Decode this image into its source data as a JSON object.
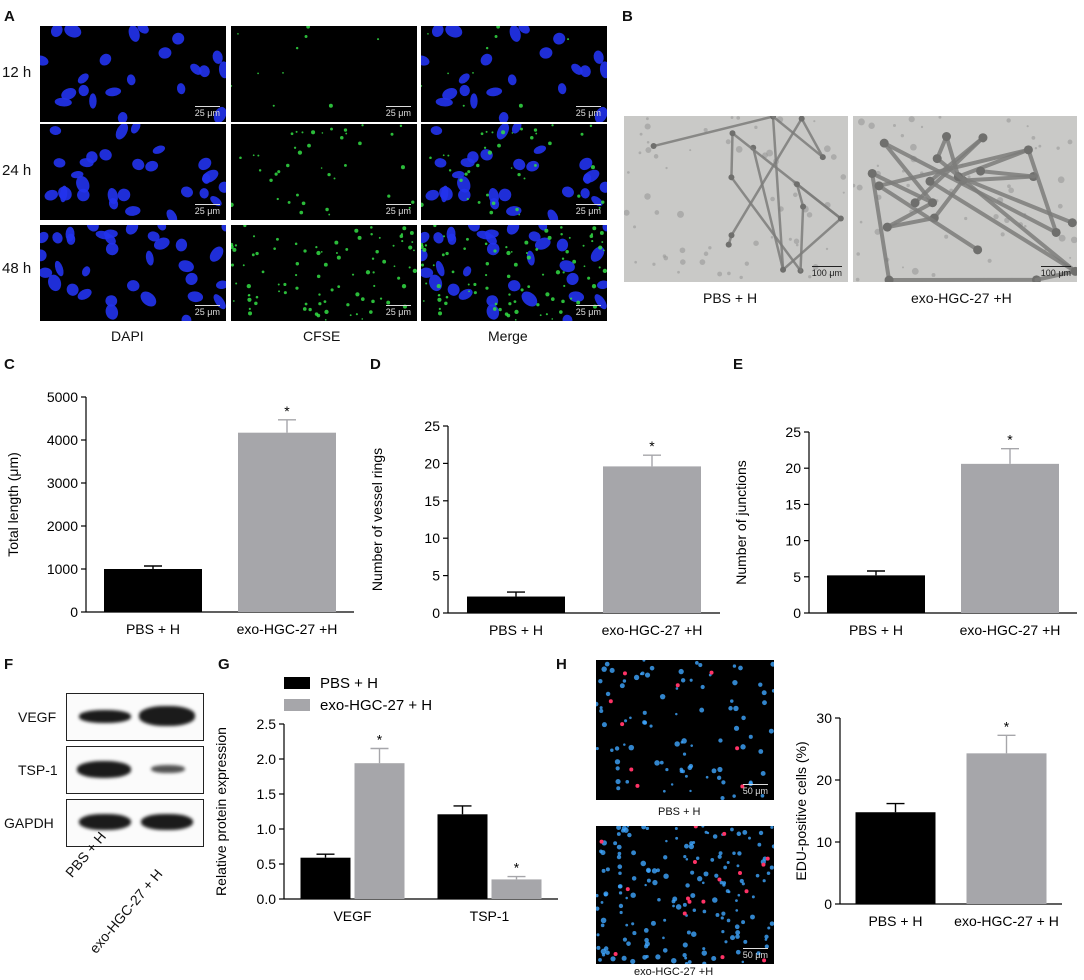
{
  "panels": {
    "A": {
      "letter": "A",
      "rows": [
        "12 h",
        "24 h",
        "48 h"
      ],
      "columns": [
        "DAPI",
        "CFSE",
        "Merge"
      ],
      "scale_bar": "25 μm"
    },
    "B": {
      "letter": "B",
      "captions": [
        "PBS + H",
        "exo-HGC-27 +H"
      ],
      "scale_bar": "100 μm"
    },
    "F": {
      "letter": "F",
      "rows": [
        "VEGF",
        "TSP-1",
        "GAPDH"
      ],
      "lanes": [
        "PBS + H",
        "exo-HGC-27 + H"
      ]
    },
    "H": {
      "letter": "H",
      "captions": [
        "PBS + H",
        "exo-HGC-27 +H"
      ],
      "scale_bar": "50 μm"
    }
  },
  "colors": {
    "black_bar": "#000000",
    "gray_bar": "#a6a6aa",
    "dapi": "#2233ee",
    "cfse": "#33dd44"
  },
  "chart_data": [
    {
      "id": "C",
      "letter": "C",
      "type": "bar",
      "categories": [
        "PBS + H",
        "exo-HGC-27 +H"
      ],
      "values": [
        1000,
        4170
      ],
      "errors": [
        70,
        300
      ],
      "significance": [
        "",
        "*"
      ],
      "ylabel": "Total length (μm)",
      "ylim": [
        0,
        5000
      ],
      "yticks": [
        0,
        1000,
        2000,
        3000,
        4000,
        5000
      ]
    },
    {
      "id": "D",
      "letter": "D",
      "type": "bar",
      "categories": [
        "PBS + H",
        "exo-HGC-27 +H"
      ],
      "values": [
        2.2,
        19.6
      ],
      "errors": [
        0.6,
        1.5
      ],
      "significance": [
        "",
        "*"
      ],
      "ylabel": "Number of vessel rings",
      "ylim": [
        0,
        25
      ],
      "yticks": [
        0,
        5,
        10,
        15,
        20,
        25
      ]
    },
    {
      "id": "E",
      "letter": "E",
      "type": "bar",
      "categories": [
        "PBS + H",
        "exo-HGC-27 +H"
      ],
      "values": [
        5.2,
        20.6
      ],
      "errors": [
        0.6,
        2.1
      ],
      "significance": [
        "",
        "*"
      ],
      "ylabel": "Number of junctions",
      "ylim": [
        0,
        25
      ],
      "yticks": [
        0,
        5,
        10,
        15,
        20,
        25
      ]
    },
    {
      "id": "G",
      "letter": "G",
      "type": "bar",
      "categories": [
        "VEGF",
        "TSP-1"
      ],
      "series": [
        {
          "name": "PBS + H",
          "values": [
            0.59,
            1.21
          ],
          "errors": [
            0.05,
            0.12
          ],
          "significance": [
            "",
            ""
          ]
        },
        {
          "name": "exo-HGC-27 + H",
          "values": [
            1.94,
            0.28
          ],
          "errors": [
            0.21,
            0.04
          ],
          "significance": [
            "*",
            "*"
          ]
        }
      ],
      "ylabel": "Relative protein expression",
      "ylim": [
        0,
        2.5
      ],
      "yticks": [
        0.0,
        0.5,
        1.0,
        1.5,
        2.0,
        2.5
      ],
      "legend": "top-left"
    },
    {
      "id": "H",
      "type": "bar",
      "categories": [
        "PBS + H",
        "exo-HGC-27 + H"
      ],
      "values": [
        14.8,
        24.3
      ],
      "errors": [
        1.4,
        2.9
      ],
      "significance": [
        "",
        "*"
      ],
      "ylabel": "EDU-positive cells (%)",
      "ylim": [
        0,
        30
      ],
      "yticks": [
        0,
        10,
        20,
        30
      ]
    }
  ]
}
